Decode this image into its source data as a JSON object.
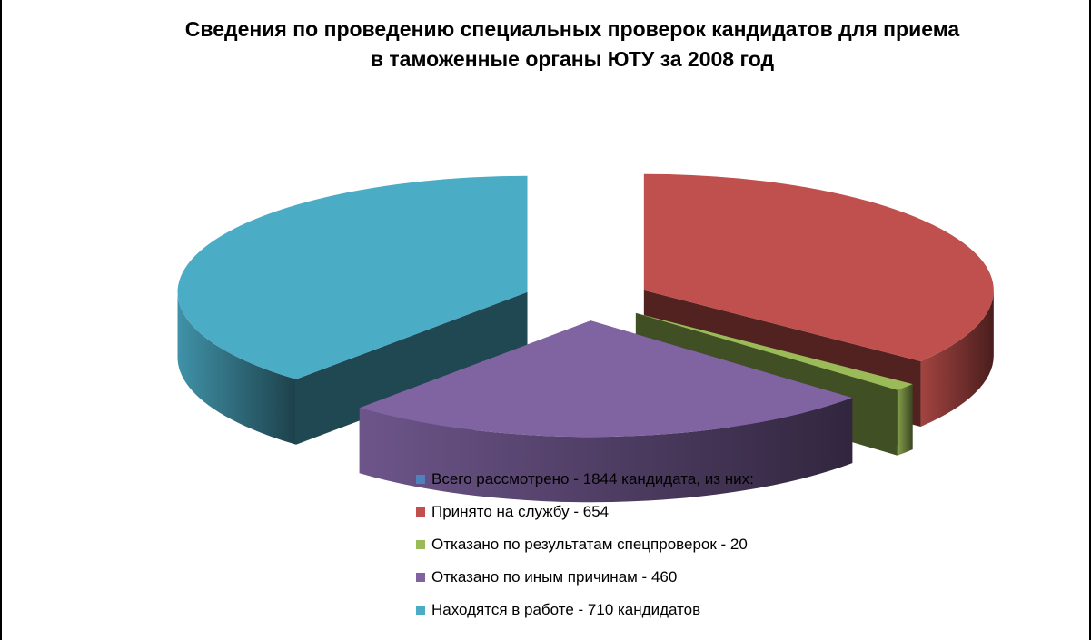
{
  "chart_data": {
    "type": "pie",
    "style": "3d-exploded",
    "title": "Сведения по проведению специальных проверок кандидатов для приема в таможенные органы ЮТУ за 2008 год",
    "title_lines": [
      "Сведения по проведению специальных проверок кандидатов для приема",
      "в таможенные органы ЮТУ за 2008 год"
    ],
    "legend_position": "bottom",
    "categories": [
      "Всего рассмотрено - 1844 кандидата, из них:",
      "Принято  на службу - 654",
      "Отказано по результатам спецпроверок - 20",
      "Отказано по иным причинам  - 460",
      "Находятся в работе - 710 кандидатов"
    ],
    "values": [
      0,
      654,
      20,
      460,
      710
    ],
    "colors": [
      "#4F81BD",
      "#C0504D",
      "#9BBB59",
      "#8064A2",
      "#4BACC6"
    ]
  }
}
